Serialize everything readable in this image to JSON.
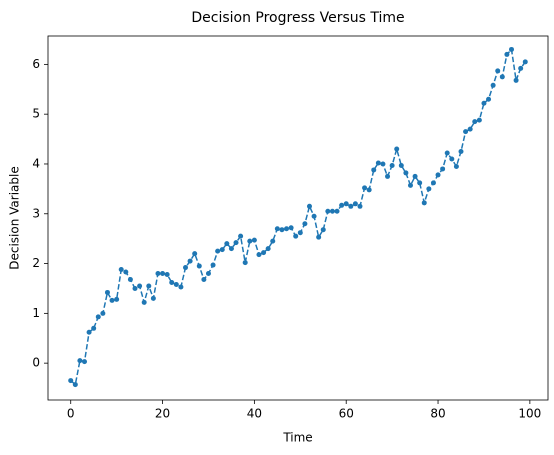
{
  "chart_data": {
    "type": "line",
    "title": "Decision Progress Versus Time",
    "xlabel": "Time",
    "ylabel": "Decision Variable",
    "x": [
      0,
      1,
      2,
      3,
      4,
      5,
      6,
      7,
      8,
      9,
      10,
      11,
      12,
      13,
      14,
      15,
      16,
      17,
      18,
      19,
      20,
      21,
      22,
      23,
      24,
      25,
      26,
      27,
      28,
      29,
      30,
      31,
      32,
      33,
      34,
      35,
      36,
      37,
      38,
      39,
      40,
      41,
      42,
      43,
      44,
      45,
      46,
      47,
      48,
      49,
      50,
      51,
      52,
      53,
      54,
      55,
      56,
      57,
      58,
      59,
      60,
      61,
      62,
      63,
      64,
      65,
      66,
      67,
      68,
      69,
      70,
      71,
      72,
      73,
      74,
      75,
      76,
      77,
      78,
      79,
      80,
      81,
      82,
      83,
      84,
      85,
      86,
      87,
      88,
      89,
      90,
      91,
      92,
      93,
      94,
      95,
      96,
      97,
      98,
      99
    ],
    "values": [
      -0.35,
      -0.43,
      0.05,
      0.03,
      0.62,
      0.7,
      0.93,
      1.0,
      1.42,
      1.26,
      1.28,
      1.88,
      1.83,
      1.68,
      1.5,
      1.55,
      1.22,
      1.55,
      1.3,
      1.8,
      1.8,
      1.78,
      1.62,
      1.58,
      1.53,
      1.92,
      2.05,
      2.2,
      1.95,
      1.68,
      1.8,
      1.97,
      2.25,
      2.28,
      2.4,
      2.3,
      2.42,
      2.55,
      2.02,
      2.45,
      2.47,
      2.18,
      2.22,
      2.3,
      2.45,
      2.7,
      2.68,
      2.7,
      2.72,
      2.55,
      2.62,
      2.8,
      3.15,
      2.95,
      2.53,
      2.68,
      3.05,
      3.05,
      3.05,
      3.17,
      3.2,
      3.15,
      3.2,
      3.15,
      3.52,
      3.48,
      3.88,
      4.02,
      4.0,
      3.75,
      3.97,
      4.3,
      3.97,
      3.82,
      3.57,
      3.75,
      3.62,
      3.22,
      3.5,
      3.62,
      3.78,
      3.9,
      4.22,
      4.1,
      3.95,
      4.25,
      4.65,
      4.7,
      4.85,
      4.88,
      5.22,
      5.3,
      5.58,
      5.87,
      5.75,
      6.2,
      6.3,
      5.68,
      5.92,
      6.05
    ],
    "color": "#1f77b4",
    "line_style": "dashed",
    "marker": "circle",
    "xlim": [
      -4.95,
      103.95
    ],
    "xticks": [
      0,
      20,
      40,
      60,
      80,
      100
    ],
    "ylim": [
      -0.74,
      6.57
    ],
    "yticks": [
      0,
      1,
      2,
      3,
      4,
      5,
      6
    ],
    "grid": false
  }
}
